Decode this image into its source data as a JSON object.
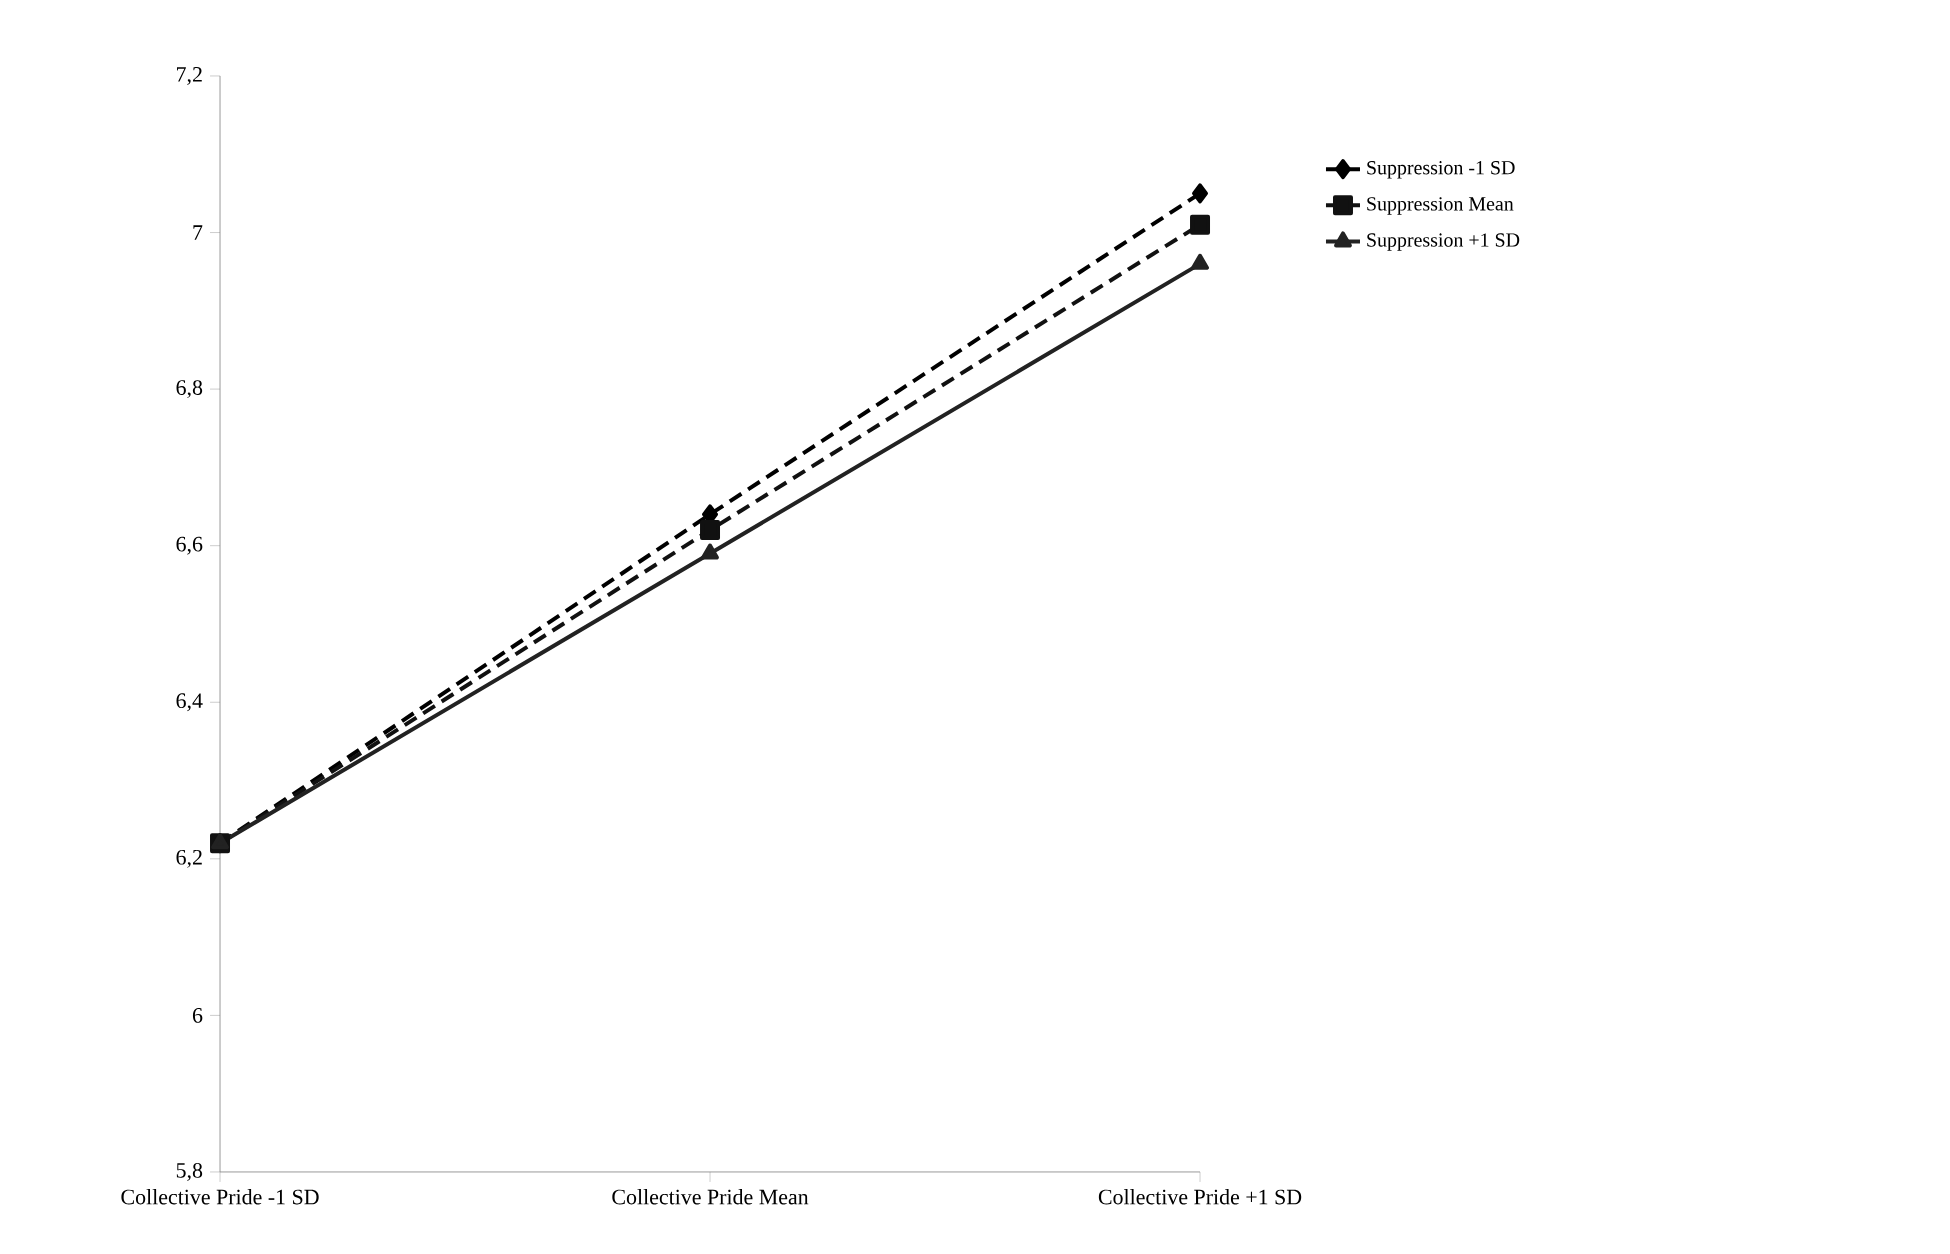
{
  "chart_data": {
    "type": "line",
    "categories": [
      "Collective Pride -1 SD",
      "Collective Pride Mean",
      "Collective Pride +1 SD"
    ],
    "series": [
      {
        "name": "Suppression -1 SD",
        "color": "#000000",
        "values": [
          6.22,
          6.64,
          7.05
        ],
        "marker": "diamond",
        "line_style": "dashed"
      },
      {
        "name": "Suppression Mean",
        "color": "#111111",
        "values": [
          6.22,
          6.62,
          7.01
        ],
        "marker": "square",
        "line_style": "dashed"
      },
      {
        "name": "Suppression +1 SD",
        "color": "#222222",
        "values": [
          6.22,
          6.59,
          6.96
        ],
        "marker": "triangle",
        "line_style": "solid"
      }
    ],
    "ylim": [
      5.8,
      7.2
    ],
    "yticks": [
      {
        "value": 5.8,
        "label": "5,8"
      },
      {
        "value": 6,
        "label": "6"
      },
      {
        "value": 6.2,
        "label": "6,2"
      },
      {
        "value": 6.4,
        "label": "6,4"
      },
      {
        "value": 6.6,
        "label": "6,6"
      },
      {
        "value": 6.8,
        "label": "6,8"
      },
      {
        "value": 7,
        "label": "7"
      },
      {
        "value": 7.2,
        "label": "7,2"
      }
    ],
    "grid": false,
    "legend": "top right"
  }
}
